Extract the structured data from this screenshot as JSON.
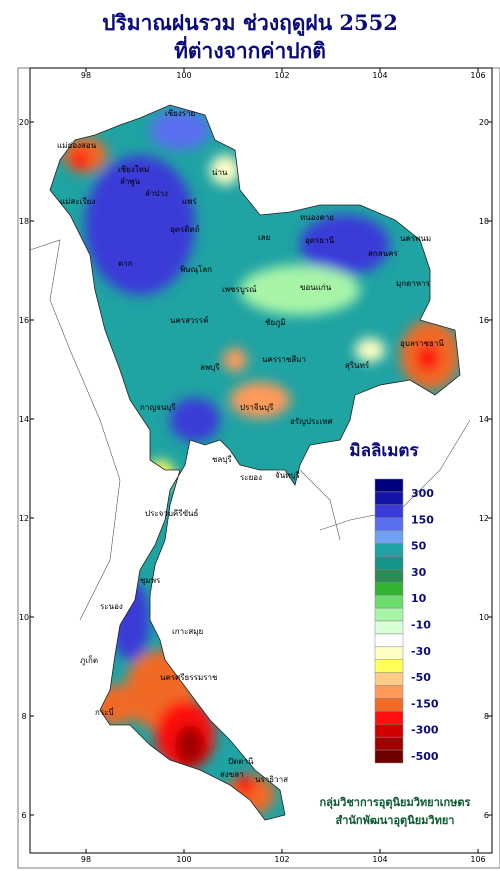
{
  "header": {
    "title": "ปริมาณฝนรวม ช่วงฤดูฝน 2552",
    "subtitle": "ที่ต่างจากค่าปกติ"
  },
  "map": {
    "lon_ticks": [
      98,
      100,
      102,
      104,
      106
    ],
    "lat_ticks": [
      20,
      18,
      16,
      14,
      12,
      10,
      8,
      6
    ],
    "places": [
      "เชียงราย",
      "แม่ฮ่องสอน",
      "เชียงใหม่",
      "ลำพูน",
      "น่าน",
      "ลำปาง",
      "แพร่",
      "แม่สะเรียง",
      "อุตรดิตถ์",
      "ตาก",
      "พิษณุโลก",
      "หนองคาย",
      "อุดรธานี",
      "เลย",
      "นครพนม",
      "สกลนคร",
      "มุกดาหาร",
      "เพชรบูรณ์",
      "ขอนแก่น",
      "นครสวรรค์",
      "ชัยภูมิ",
      "ลพบุรี",
      "นครราชสีมา",
      "สุรินทร์",
      "อุบลราชธานี",
      "กาญจนบุรี",
      "ปราจีนบุรี",
      "อรัญประเทศ",
      "ชลบุรี",
      "ระยอง",
      "จันทบุรี",
      "ประจวบคีรีขันธ์",
      "ชุมพร",
      "ระนอง",
      "เกาะสมุย",
      "ภูเก็ต",
      "นครศรีธรรมราช",
      "กระบี่",
      "สงขลา",
      "ปัตตานี",
      "นราธิวาส"
    ]
  },
  "legend": {
    "title": "มิลลิเมตร",
    "colors": [
      "#00007f",
      "#1414a8",
      "#3a3ad8",
      "#5a6ef0",
      "#6fa3f2",
      "#1fa3a3",
      "#15958a",
      "#2e8b57",
      "#32b432",
      "#6cdc6c",
      "#a8f5a8",
      "#d8ffd8",
      "#ffffff",
      "#ffffc4",
      "#ffff5a",
      "#ffcc88",
      "#ff9a5a",
      "#f06a28",
      "#ff1010",
      "#d00000",
      "#a00000",
      "#6e0000"
    ],
    "labels": [
      "300",
      "150",
      "50",
      "30",
      "10",
      "-10",
      "-30",
      "-50",
      "-150",
      "-300",
      "-500"
    ]
  },
  "credit": {
    "line1": "กลุ่มวิชาการอุตุนิยมวิทยาเกษตร",
    "line2": "สำนักพัฒนาอุตุนิยมวิทยา"
  }
}
